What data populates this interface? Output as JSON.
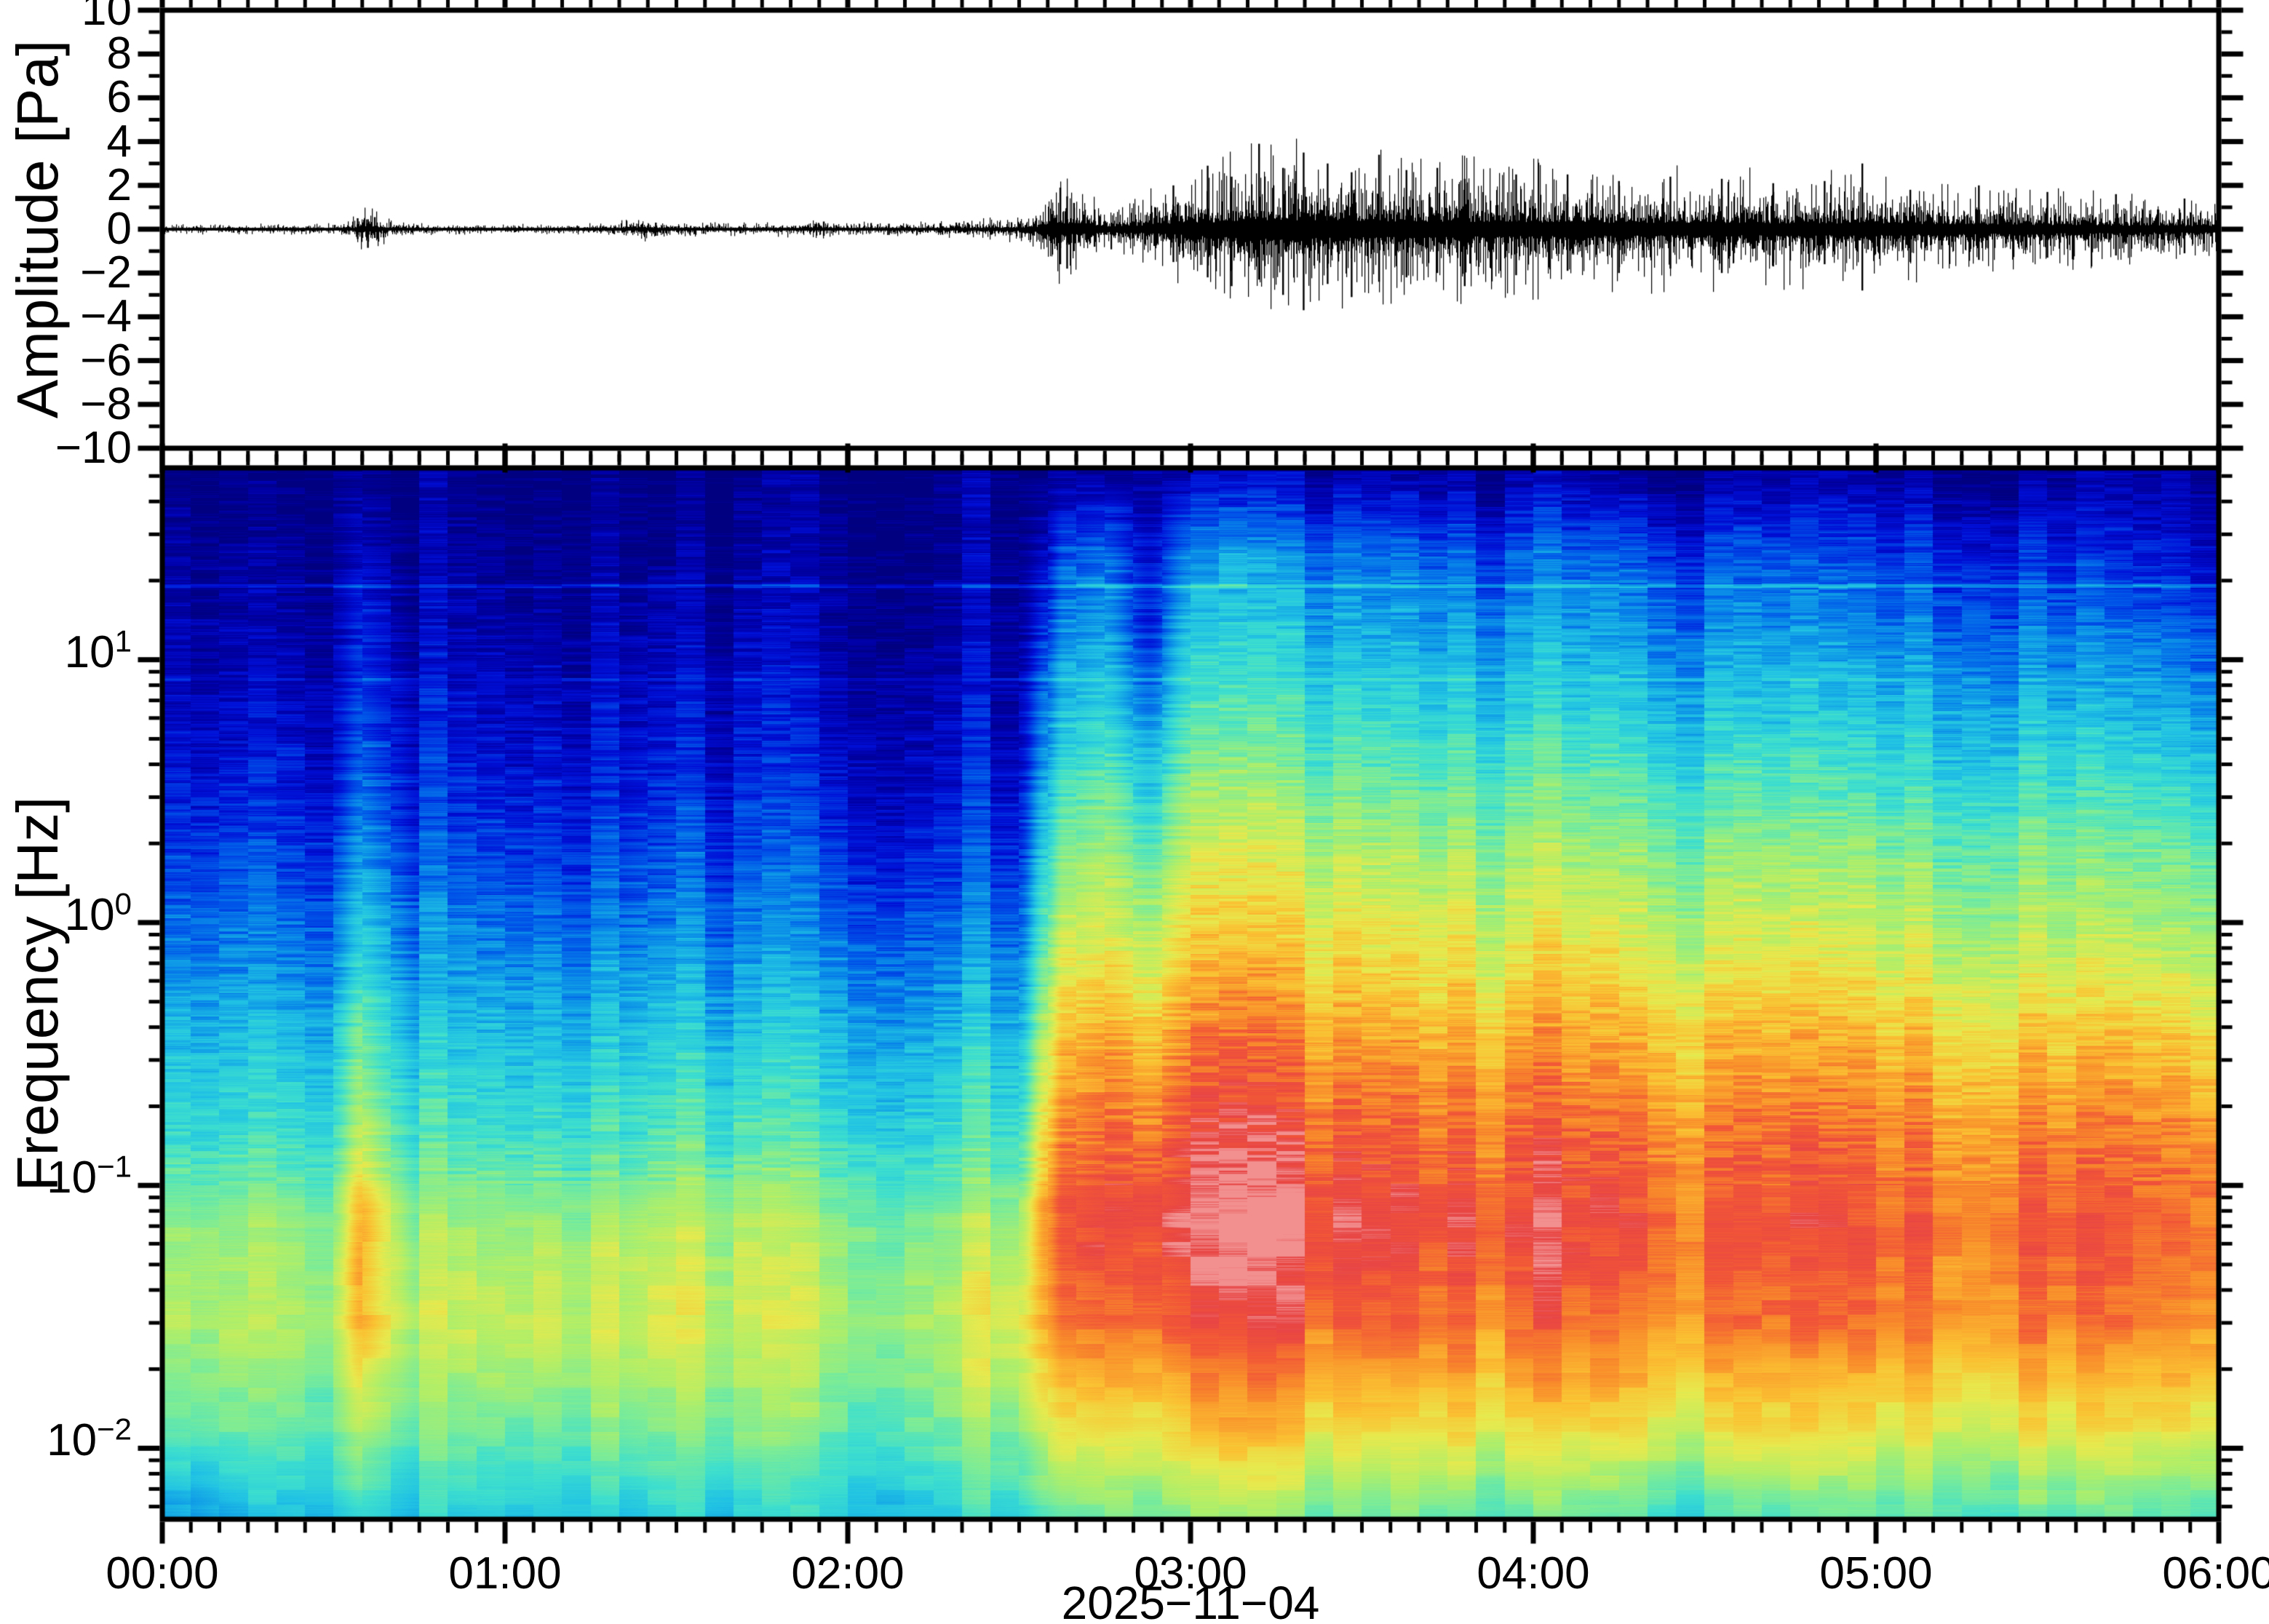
{
  "figure": {
    "background_color": "#ffffff",
    "frame_color": "#000000",
    "waveform_color": "#000000"
  },
  "time_axis": {
    "date_label": "2025−11−04",
    "tick_labels": [
      "00:00",
      "01:00",
      "02:00",
      "03:00",
      "04:00",
      "05:00",
      "06:00"
    ],
    "tick_hours": [
      0,
      1,
      2,
      3,
      4,
      5,
      6
    ],
    "minor_step_minutes": 5,
    "xlim_hours": [
      0,
      6
    ]
  },
  "amplitude_axis": {
    "title": "Amplitude [Pa]",
    "tick_values": [
      10,
      8,
      6,
      4,
      2,
      0,
      -2,
      -4,
      -6,
      -8,
      -10
    ],
    "tick_labels": [
      "10",
      "8",
      "6",
      "4",
      "2",
      "0",
      "−2",
      "−4",
      "−6",
      "−8",
      "−10"
    ],
    "minor_step": 1,
    "ylim": [
      -10,
      10
    ]
  },
  "frequency_axis": {
    "title": "Frequency [Hz]",
    "scale": "log",
    "tick_base": "10",
    "ticks": [
      {
        "exponent_label": "1",
        "log_value": 1
      },
      {
        "exponent_label": "0",
        "log_value": 0
      },
      {
        "exponent_label": "−1",
        "log_value": -1
      },
      {
        "exponent_label": "−2",
        "log_value": -2
      }
    ],
    "flim_hz": [
      0.00537,
      53.7
    ]
  },
  "chart_data": [
    {
      "type": "line",
      "name": "infrasound-waveform",
      "ylabel": "Amplitude [Pa]",
      "xlabel": "2025−11−04",
      "ylim": [
        -10,
        10
      ],
      "xlim_hours": [
        0,
        6
      ],
      "noise_floor_pa": 0.06,
      "envelope": {
        "hours": [
          0,
          0.25,
          0.5,
          0.55,
          0.58,
          0.62,
          0.67,
          0.75,
          1.0,
          1.25,
          1.4,
          1.5,
          1.75,
          1.9,
          2.0,
          2.1,
          2.25,
          2.4,
          2.5,
          2.56,
          2.6,
          2.66,
          2.75,
          2.85,
          3.0,
          3.1,
          3.25,
          3.4,
          3.5,
          3.75,
          4.0,
          4.25,
          4.5,
          4.75,
          5.0,
          5.25,
          5.5,
          5.75,
          6.0
        ],
        "peak_pa": [
          0.1,
          0.11,
          0.12,
          0.2,
          0.45,
          0.4,
          0.2,
          0.12,
          0.11,
          0.12,
          0.25,
          0.15,
          0.13,
          0.2,
          0.14,
          0.16,
          0.15,
          0.22,
          0.3,
          0.5,
          1.2,
          0.9,
          0.5,
          0.7,
          1.2,
          1.5,
          1.9,
          1.7,
          1.6,
          1.5,
          1.4,
          1.3,
          1.25,
          1.2,
          1.15,
          0.95,
          0.85,
          0.7,
          0.6
        ]
      },
      "spikes_t_up_down": [
        [
          0.57,
          0.5,
          -0.45
        ],
        [
          0.6,
          0.45,
          -0.85
        ],
        [
          0.62,
          0.55,
          -0.4
        ],
        [
          1.44,
          0.3,
          -0.3
        ],
        [
          1.93,
          0.35,
          -0.3
        ],
        [
          2.12,
          0.25,
          -0.25
        ],
        [
          2.35,
          0.3,
          -0.25
        ],
        [
          2.62,
          1.9,
          -1.6
        ],
        [
          2.64,
          1.5,
          -1.8
        ],
        [
          2.66,
          1.2,
          -1.0
        ],
        [
          2.72,
          0.9,
          -0.8
        ],
        [
          2.95,
          2.0,
          -1.5
        ],
        [
          3.05,
          2.9,
          -2.2
        ],
        [
          3.12,
          2.4,
          -2.6
        ],
        [
          3.2,
          3.9,
          -2.3
        ],
        [
          3.27,
          2.8,
          -3.0
        ],
        [
          3.33,
          3.5,
          -3.7
        ],
        [
          3.4,
          3.0,
          -2.5
        ],
        [
          3.47,
          2.6,
          -3.1
        ],
        [
          3.55,
          3.4,
          -2.4
        ],
        [
          3.63,
          2.7,
          -2.2
        ],
        [
          3.72,
          2.8,
          -2.0
        ],
        [
          3.8,
          2.3,
          -2.6
        ],
        [
          3.95,
          2.5,
          -2.1
        ],
        [
          4.1,
          2.5,
          -1.9
        ],
        [
          4.25,
          2.2,
          -2.0
        ],
        [
          4.4,
          2.4,
          -1.8
        ],
        [
          4.55,
          2.3,
          -2.0
        ],
        [
          4.7,
          2.1,
          -1.7
        ],
        [
          4.85,
          2.2,
          -1.6
        ],
        [
          4.96,
          3.0,
          -2.8
        ],
        [
          5.1,
          1.8,
          -1.5
        ],
        [
          5.3,
          2.0,
          -1.4
        ],
        [
          5.5,
          1.7,
          -1.3
        ],
        [
          5.7,
          1.6,
          -1.2
        ],
        [
          5.9,
          1.4,
          -1.1
        ]
      ]
    },
    {
      "type": "heatmap",
      "name": "infrasound-spectrogram",
      "ylabel": "Frequency [Hz]",
      "y_scale": "log",
      "flim_hz": [
        0.00537,
        53.7
      ],
      "xlim_hours": [
        0,
        6
      ],
      "x_hours": [
        0.0,
        0.25,
        0.5,
        0.58,
        0.67,
        0.75,
        1.0,
        1.25,
        1.5,
        1.75,
        2.0,
        2.25,
        2.5,
        2.58,
        2.63,
        2.75,
        2.88,
        3.0,
        3.25,
        3.5,
        3.75,
        4.0,
        4.25,
        4.5,
        4.75,
        5.0,
        5.25,
        5.5,
        5.75,
        6.0
      ],
      "y_freqs_hz": [
        50,
        25,
        12,
        6,
        3,
        1.5,
        0.7,
        0.35,
        0.15,
        0.07,
        0.03,
        0.012,
        0.005
      ],
      "values": [
        [
          0.02,
          0.02,
          0.02,
          0.03,
          0.02,
          0.02,
          0.02,
          0.02,
          0.02,
          0.02,
          0.02,
          0.02,
          0.03,
          0.04,
          0.05,
          0.05,
          0.05,
          0.06,
          0.06,
          0.06,
          0.06,
          0.06,
          0.05,
          0.05,
          0.05,
          0.05,
          0.05,
          0.04,
          0.04,
          0.03
        ],
        [
          0.05,
          0.06,
          0.05,
          0.1,
          0.08,
          0.05,
          0.06,
          0.05,
          0.06,
          0.05,
          0.05,
          0.04,
          0.05,
          0.12,
          0.22,
          0.25,
          0.14,
          0.27,
          0.26,
          0.25,
          0.24,
          0.23,
          0.22,
          0.21,
          0.2,
          0.19,
          0.18,
          0.16,
          0.13,
          0.1
        ],
        [
          0.08,
          0.09,
          0.08,
          0.15,
          0.12,
          0.08,
          0.1,
          0.08,
          0.11,
          0.09,
          0.07,
          0.06,
          0.07,
          0.2,
          0.3,
          0.33,
          0.18,
          0.36,
          0.36,
          0.35,
          0.34,
          0.33,
          0.32,
          0.31,
          0.3,
          0.29,
          0.28,
          0.26,
          0.24,
          0.22
        ],
        [
          0.12,
          0.13,
          0.12,
          0.2,
          0.16,
          0.12,
          0.14,
          0.12,
          0.15,
          0.13,
          0.11,
          0.1,
          0.11,
          0.28,
          0.38,
          0.42,
          0.3,
          0.45,
          0.45,
          0.44,
          0.43,
          0.42,
          0.41,
          0.4,
          0.39,
          0.38,
          0.37,
          0.36,
          0.34,
          0.33
        ],
        [
          0.16,
          0.17,
          0.16,
          0.26,
          0.21,
          0.16,
          0.18,
          0.16,
          0.2,
          0.17,
          0.15,
          0.14,
          0.15,
          0.36,
          0.48,
          0.52,
          0.42,
          0.55,
          0.55,
          0.54,
          0.53,
          0.52,
          0.51,
          0.5,
          0.49,
          0.48,
          0.47,
          0.46,
          0.44,
          0.43
        ],
        [
          0.22,
          0.23,
          0.22,
          0.32,
          0.27,
          0.22,
          0.24,
          0.22,
          0.26,
          0.23,
          0.21,
          0.2,
          0.21,
          0.45,
          0.58,
          0.62,
          0.55,
          0.65,
          0.65,
          0.64,
          0.63,
          0.62,
          0.61,
          0.6,
          0.59,
          0.58,
          0.57,
          0.56,
          0.54,
          0.53
        ],
        [
          0.3,
          0.31,
          0.3,
          0.42,
          0.36,
          0.3,
          0.32,
          0.31,
          0.34,
          0.31,
          0.3,
          0.29,
          0.3,
          0.55,
          0.68,
          0.71,
          0.66,
          0.74,
          0.74,
          0.73,
          0.72,
          0.71,
          0.7,
          0.69,
          0.68,
          0.67,
          0.66,
          0.65,
          0.63,
          0.62
        ],
        [
          0.38,
          0.39,
          0.38,
          0.52,
          0.45,
          0.38,
          0.4,
          0.39,
          0.43,
          0.4,
          0.38,
          0.37,
          0.39,
          0.65,
          0.78,
          0.81,
          0.78,
          0.83,
          0.83,
          0.82,
          0.81,
          0.81,
          0.8,
          0.79,
          0.79,
          0.78,
          0.77,
          0.76,
          0.75,
          0.74
        ],
        [
          0.46,
          0.47,
          0.46,
          0.62,
          0.53,
          0.46,
          0.49,
          0.47,
          0.52,
          0.49,
          0.46,
          0.45,
          0.48,
          0.75,
          0.86,
          0.89,
          0.88,
          0.92,
          0.92,
          0.91,
          0.9,
          0.9,
          0.89,
          0.88,
          0.88,
          0.87,
          0.86,
          0.86,
          0.85,
          0.84
        ],
        [
          0.58,
          0.6,
          0.58,
          0.8,
          0.68,
          0.58,
          0.62,
          0.6,
          0.66,
          0.62,
          0.58,
          0.57,
          0.62,
          0.85,
          0.93,
          0.95,
          0.94,
          0.97,
          0.97,
          0.96,
          0.95,
          0.94,
          0.93,
          0.92,
          0.92,
          0.91,
          0.9,
          0.9,
          0.89,
          0.88
        ],
        [
          0.62,
          0.64,
          0.62,
          0.78,
          0.7,
          0.63,
          0.68,
          0.66,
          0.7,
          0.66,
          0.62,
          0.63,
          0.7,
          0.82,
          0.88,
          0.89,
          0.89,
          0.9,
          0.9,
          0.9,
          0.89,
          0.89,
          0.88,
          0.88,
          0.87,
          0.87,
          0.86,
          0.86,
          0.85,
          0.84
        ],
        [
          0.52,
          0.54,
          0.52,
          0.6,
          0.56,
          0.53,
          0.56,
          0.55,
          0.58,
          0.56,
          0.53,
          0.54,
          0.58,
          0.66,
          0.7,
          0.72,
          0.71,
          0.74,
          0.74,
          0.73,
          0.73,
          0.72,
          0.72,
          0.71,
          0.71,
          0.7,
          0.7,
          0.69,
          0.69,
          0.68
        ],
        [
          0.28,
          0.36,
          0.38,
          0.42,
          0.4,
          0.38,
          0.4,
          0.39,
          0.42,
          0.4,
          0.38,
          0.39,
          0.42,
          0.48,
          0.5,
          0.51,
          0.51,
          0.52,
          0.52,
          0.51,
          0.5,
          0.48,
          0.46,
          0.45,
          0.46,
          0.47,
          0.48,
          0.47,
          0.46,
          0.45
        ]
      ],
      "colormap_stops": [
        [
          0.0,
          "#000080"
        ],
        [
          0.07,
          "#0000a8"
        ],
        [
          0.14,
          "#0010d8"
        ],
        [
          0.22,
          "#0050e8"
        ],
        [
          0.3,
          "#0b90e8"
        ],
        [
          0.38,
          "#22c4e4"
        ],
        [
          0.46,
          "#3fe0ce"
        ],
        [
          0.54,
          "#7aec9a"
        ],
        [
          0.62,
          "#b2ef68"
        ],
        [
          0.7,
          "#e8ea4e"
        ],
        [
          0.78,
          "#fbc233"
        ],
        [
          0.86,
          "#f98c2b"
        ],
        [
          0.92,
          "#f25638"
        ],
        [
          0.97,
          "#e84545"
        ],
        [
          1.0,
          "#f29090"
        ]
      ]
    }
  ]
}
